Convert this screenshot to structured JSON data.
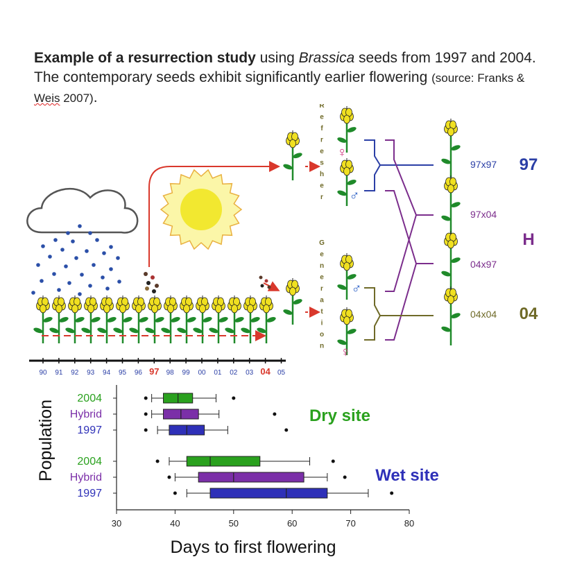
{
  "caption": {
    "bold": "Example of a resurrection study",
    "part1": " using ",
    "italic": "Brassica",
    "part2": " seeds from 1997 and 2004. The contemporary seeds exhibit significantly earlier flowering ",
    "source_open": "(source: Franks & ",
    "source_name": "Weis",
    "source_close": " 2007)",
    "period": "."
  },
  "diagram": {
    "timeline_years": [
      "90",
      "91",
      "92",
      "93",
      "94",
      "95",
      "96",
      "97",
      "98",
      "99",
      "00",
      "01",
      "02",
      "03",
      "04",
      "05"
    ],
    "highlight_years": [
      "97",
      "04"
    ],
    "refresher_label": "Refresher",
    "generation_label": "Generation",
    "female_symbol": "♀",
    "male_symbol": "♂",
    "crosses": [
      "97x97",
      "97x04",
      "04x97",
      "04x04"
    ],
    "groups": [
      "97",
      "H",
      "04"
    ],
    "colors": {
      "g97": "#2b3fa6",
      "gH": "#7b2d8c",
      "g04": "#6f6a28",
      "red": "#d9382c",
      "leaf": "#1f8a2a",
      "flower": "#f0e020",
      "rain": "#2b4fa8",
      "sun": "#f2e830"
    }
  },
  "chart_data": {
    "type": "boxplot",
    "xlabel": "Days to first flowering",
    "ylabel": "Population",
    "xlim": [
      30,
      80
    ],
    "xticks": [
      30,
      40,
      50,
      60,
      70,
      80
    ],
    "sites": [
      {
        "name": "Dry site",
        "color": "#2aa11e",
        "groups": [
          {
            "name": "2004",
            "color": "#2aa11e",
            "whisker_low": 36,
            "q1": 38,
            "median": 40.5,
            "q3": 43,
            "whisker_high": 47,
            "outliers": [
              35,
              50
            ]
          },
          {
            "name": "Hybrid",
            "color": "#7b2fa8",
            "whisker_low": 36,
            "q1": 38,
            "median": 41,
            "q3": 44,
            "whisker_high": 47.5,
            "outliers": [
              35,
              57
            ]
          },
          {
            "name": "1997",
            "color": "#2e30b8",
            "whisker_low": 37,
            "q1": 39,
            "median": 42,
            "q3": 45,
            "whisker_high": 49,
            "outliers": [
              35,
              59
            ]
          }
        ]
      },
      {
        "name": "Wet site",
        "color": "#2e30b8",
        "groups": [
          {
            "name": "2004",
            "color": "#2aa11e",
            "whisker_low": 39,
            "q1": 42,
            "median": 46,
            "q3": 54.5,
            "whisker_high": 63,
            "outliers": [
              37,
              67
            ]
          },
          {
            "name": "Hybrid",
            "color": "#7b2fa8",
            "whisker_low": 40,
            "q1": 44,
            "median": 50,
            "q3": 62,
            "whisker_high": 66,
            "outliers": [
              39,
              69
            ]
          },
          {
            "name": "1997",
            "color": "#2e30b8",
            "whisker_low": 42,
            "q1": 46,
            "median": 59,
            "q3": 66,
            "whisker_high": 73,
            "outliers": [
              40,
              77
            ]
          }
        ]
      }
    ]
  }
}
